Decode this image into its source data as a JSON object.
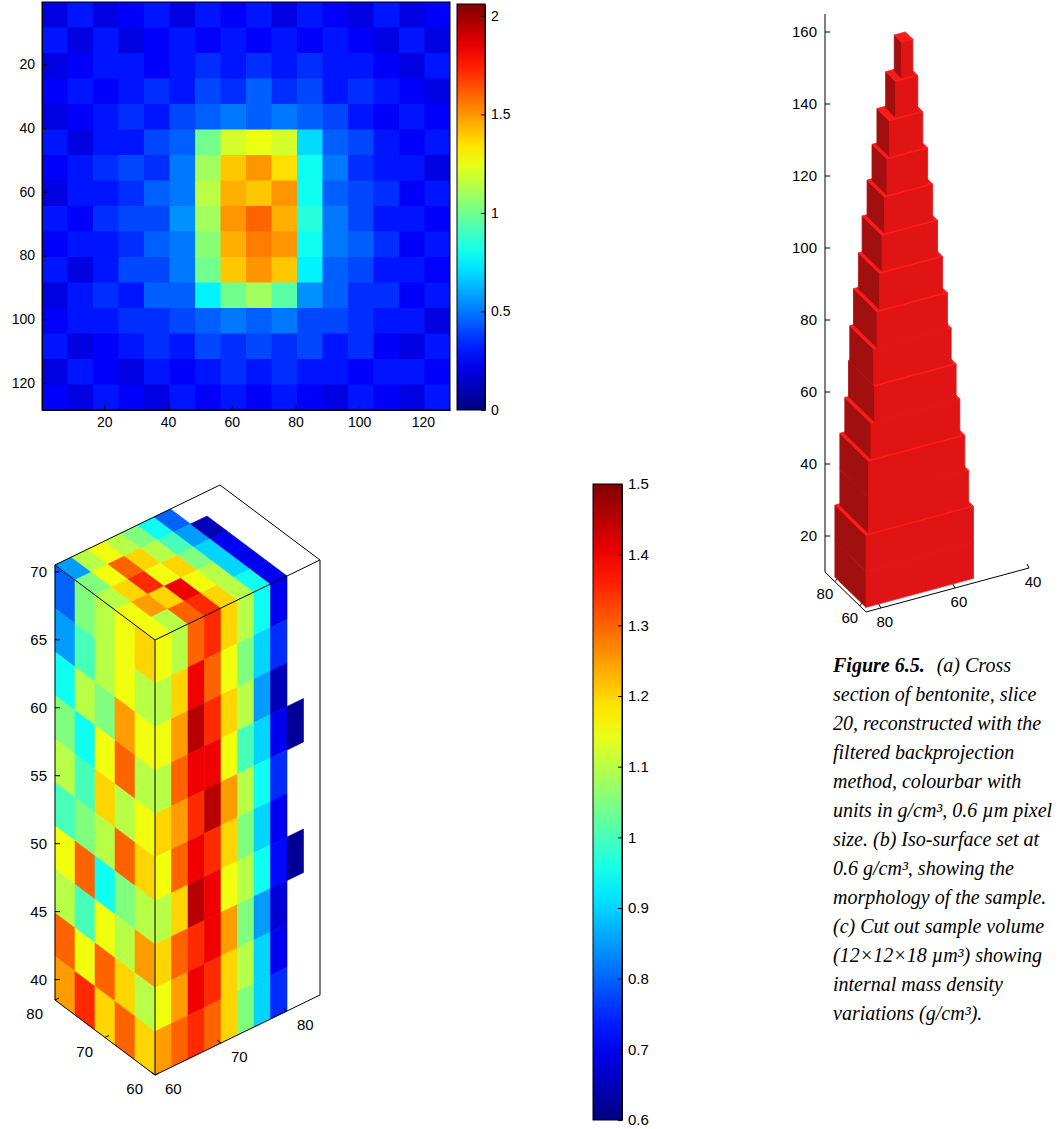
{
  "chart_data": [
    {
      "type": "heatmap",
      "x_edges": [
        0.5,
        8.5,
        16.5,
        24.5,
        32.5,
        40.5,
        48.5,
        56.5,
        64.5,
        72.5,
        80.5,
        88.5,
        96.5,
        104.5,
        112.5,
        120.5,
        128.5
      ],
      "y_edges": [
        0.5,
        8.5,
        16.5,
        24.5,
        32.5,
        40.5,
        48.5,
        56.5,
        64.5,
        72.5,
        80.5,
        88.5,
        96.5,
        104.5,
        112.5,
        120.5,
        128.5
      ],
      "cells": [
        [
          0.2,
          0.3,
          0.2,
          0.25,
          0.3,
          0.2,
          0.3,
          0.25,
          0.3,
          0.2,
          0.3,
          0.25,
          0.2,
          0.3,
          0.2,
          0.25
        ],
        [
          0.3,
          0.2,
          0.3,
          0.2,
          0.25,
          0.3,
          0.25,
          0.3,
          0.25,
          0.3,
          0.25,
          0.3,
          0.25,
          0.2,
          0.3,
          0.2
        ],
        [
          0.2,
          0.25,
          0.3,
          0.3,
          0.25,
          0.3,
          0.35,
          0.3,
          0.35,
          0.3,
          0.35,
          0.3,
          0.3,
          0.25,
          0.2,
          0.3
        ],
        [
          0.25,
          0.3,
          0.25,
          0.3,
          0.35,
          0.3,
          0.4,
          0.35,
          0.45,
          0.35,
          0.4,
          0.3,
          0.35,
          0.3,
          0.25,
          0.2
        ],
        [
          0.2,
          0.25,
          0.3,
          0.35,
          0.3,
          0.4,
          0.45,
          0.5,
          0.45,
          0.5,
          0.45,
          0.4,
          0.3,
          0.25,
          0.3,
          0.25
        ],
        [
          0.3,
          0.2,
          0.3,
          0.3,
          0.4,
          0.45,
          1.0,
          1.2,
          1.25,
          1.2,
          0.7,
          0.45,
          0.4,
          0.3,
          0.25,
          0.3
        ],
        [
          0.25,
          0.3,
          0.35,
          0.4,
          0.35,
          0.5,
          1.1,
          1.4,
          1.5,
          1.35,
          0.8,
          0.5,
          0.35,
          0.3,
          0.3,
          0.2
        ],
        [
          0.2,
          0.3,
          0.3,
          0.35,
          0.45,
          0.5,
          1.15,
          1.45,
          1.4,
          1.5,
          0.8,
          0.45,
          0.4,
          0.35,
          0.25,
          0.3
        ],
        [
          0.3,
          0.25,
          0.35,
          0.4,
          0.4,
          0.55,
          1.1,
          1.5,
          1.6,
          1.45,
          0.85,
          0.5,
          0.4,
          0.3,
          0.3,
          0.25
        ],
        [
          0.25,
          0.3,
          0.3,
          0.35,
          0.45,
          0.5,
          1.05,
          1.45,
          1.55,
          1.5,
          0.8,
          0.5,
          0.45,
          0.35,
          0.25,
          0.3
        ],
        [
          0.3,
          0.2,
          0.3,
          0.4,
          0.4,
          0.5,
          1.0,
          1.4,
          1.5,
          1.4,
          0.75,
          0.45,
          0.4,
          0.3,
          0.3,
          0.25
        ],
        [
          0.2,
          0.3,
          0.35,
          0.3,
          0.45,
          0.45,
          0.75,
          1.0,
          1.1,
          0.95,
          0.55,
          0.45,
          0.35,
          0.35,
          0.25,
          0.3
        ],
        [
          0.25,
          0.3,
          0.3,
          0.35,
          0.35,
          0.4,
          0.45,
          0.5,
          0.45,
          0.5,
          0.4,
          0.4,
          0.35,
          0.3,
          0.3,
          0.2
        ],
        [
          0.3,
          0.2,
          0.25,
          0.3,
          0.35,
          0.3,
          0.4,
          0.35,
          0.4,
          0.35,
          0.4,
          0.3,
          0.35,
          0.25,
          0.2,
          0.3
        ],
        [
          0.2,
          0.3,
          0.25,
          0.2,
          0.3,
          0.25,
          0.3,
          0.35,
          0.3,
          0.35,
          0.3,
          0.3,
          0.25,
          0.3,
          0.3,
          0.25
        ],
        [
          0.25,
          0.2,
          0.3,
          0.25,
          0.2,
          0.3,
          0.25,
          0.3,
          0.25,
          0.3,
          0.25,
          0.2,
          0.3,
          0.25,
          0.2,
          0.3
        ]
      ],
      "xlim": [
        0.5,
        128.5
      ],
      "ylim": [
        0.5,
        128.5
      ],
      "xticks": [
        20,
        40,
        60,
        80,
        100,
        120
      ],
      "yticks": [
        20,
        40,
        60,
        80,
        100,
        120
      ],
      "colorbar": {
        "range": [
          0,
          2.06
        ],
        "ticks": [
          0,
          0.5,
          1,
          1.5,
          2
        ]
      }
    },
    {
      "type": "isosurface",
      "color": "#e01414",
      "xlim": [
        55,
        88
      ],
      "ylim": [
        40,
        84
      ],
      "zlim": [
        10,
        165
      ],
      "xticks": [
        60,
        80
      ],
      "yticks": [
        40,
        60,
        80
      ],
      "zticks": [
        20,
        40,
        60,
        80,
        100,
        120,
        140,
        160
      ],
      "slices": {
        "z_edges": [
          10,
          20,
          30,
          40,
          50,
          60,
          70,
          80,
          90,
          100,
          110,
          120,
          130,
          140,
          150,
          160
        ],
        "xmin": [
          58,
          58,
          59,
          59,
          60,
          60,
          61,
          61,
          62,
          63,
          64,
          65,
          66,
          67,
          68
        ],
        "xmax": [
          83,
          83,
          82,
          82,
          81,
          81,
          80,
          80,
          79,
          79,
          78,
          77,
          76,
          75,
          74
        ],
        "ymin": [
          54,
          54,
          55,
          56,
          57,
          58,
          59,
          60,
          61,
          62,
          63,
          64,
          65,
          66,
          67
        ],
        "ymax": [
          83,
          83,
          82,
          82,
          81,
          80,
          80,
          79,
          78,
          77,
          76,
          75,
          74,
          72,
          70
        ]
      }
    },
    {
      "type": "volume",
      "xlim": [
        60,
        80
      ],
      "ylim": [
        60,
        85
      ],
      "zlim": [
        38.5,
        70.5
      ],
      "xticks": [
        60,
        70,
        80
      ],
      "yticks": [
        60,
        70,
        80
      ],
      "zticks": [
        40,
        45,
        50,
        55,
        60,
        65,
        70
      ],
      "faces": {
        "left": {
          "x_edges": [
            80,
            76,
            72,
            68,
            64,
            60
          ],
          "z_edges": [
            70.5,
            67.3,
            64.1,
            60.9,
            57.7,
            54.5,
            51.3,
            48.1,
            44.9,
            41.7,
            38.5
          ],
          "values": [
            [
              0.8,
              1.05,
              1.1,
              1.15,
              1.2
            ],
            [
              0.85,
              1.0,
              1.1,
              1.15,
              1.1
            ],
            [
              0.95,
              1.1,
              1.05,
              1.25,
              1.15
            ],
            [
              1.05,
              0.95,
              1.15,
              1.3,
              1.1
            ],
            [
              1.1,
              1.0,
              1.2,
              1.1,
              1.15
            ],
            [
              1.0,
              1.05,
              1.1,
              1.3,
              1.2
            ],
            [
              1.15,
              1.3,
              0.95,
              1.05,
              1.1
            ],
            [
              1.1,
              1.0,
              1.15,
              1.1,
              1.25
            ],
            [
              1.3,
              1.15,
              1.3,
              1.2,
              1.1
            ],
            [
              1.25,
              1.35,
              1.2,
              1.3,
              1.2
            ]
          ]
        },
        "right": {
          "y_edges": [
            60,
            62.5,
            65,
            67.5,
            70,
            72.5,
            75,
            77.5,
            80,
            82.5,
            85
          ],
          "z_edges": [
            70.5,
            67.3,
            64.1,
            60.9,
            57.7,
            54.5,
            51.3,
            48.1,
            44.9,
            41.7,
            38.5
          ],
          "values": [
            [
              1.15,
              1.1,
              1.3,
              1.35,
              1.2,
              1.1,
              0.95,
              0.7,
              null,
              null
            ],
            [
              1.1,
              1.2,
              1.4,
              1.3,
              1.15,
              1.05,
              0.9,
              0.75,
              null,
              null
            ],
            [
              1.15,
              1.25,
              1.45,
              1.35,
              1.2,
              1.1,
              0.85,
              0.65,
              null,
              null
            ],
            [
              1.1,
              1.3,
              1.4,
              1.4,
              1.15,
              1.0,
              0.9,
              0.7,
              0.62,
              null
            ],
            [
              1.2,
              1.25,
              1.35,
              1.45,
              1.25,
              1.1,
              0.95,
              0.75,
              null,
              null
            ],
            [
              1.15,
              1.3,
              1.4,
              1.35,
              1.2,
              1.05,
              0.9,
              0.7,
              null,
              null
            ],
            [
              1.1,
              1.2,
              1.45,
              1.4,
              1.15,
              1.1,
              0.95,
              0.72,
              0.62,
              null
            ],
            [
              1.2,
              1.3,
              1.35,
              1.4,
              1.25,
              1.05,
              0.85,
              0.68,
              null,
              null
            ],
            [
              1.15,
              1.25,
              1.4,
              1.35,
              1.2,
              1.1,
              0.9,
              0.7,
              null,
              null
            ],
            [
              1.25,
              1.3,
              1.35,
              1.3,
              1.2,
              1.05,
              0.9,
              0.75,
              null,
              null
            ]
          ]
        },
        "top": {
          "x_edges": [
            80,
            76,
            72,
            68,
            64,
            60
          ],
          "y_edges": [
            60,
            62.5,
            65,
            67.5,
            70,
            72.5,
            75,
            77.5,
            80,
            82.5,
            85
          ],
          "values": [
            [
              0.85,
              1.1,
              1.15,
              1.1,
              1.05,
              0.95,
              0.8,
              null,
              null,
              null
            ],
            [
              1.05,
              1.15,
              1.3,
              1.2,
              1.1,
              1.0,
              0.85,
              0.65,
              null,
              null
            ],
            [
              1.1,
              1.2,
              1.35,
              1.15,
              1.2,
              1.05,
              0.9,
              0.7,
              null,
              null
            ],
            [
              1.15,
              1.25,
              1.2,
              1.4,
              1.15,
              1.1,
              0.9,
              0.7,
              null,
              null
            ],
            [
              1.15,
              1.1,
              1.3,
              1.35,
              1.2,
              1.1,
              0.95,
              0.7,
              null,
              null
            ]
          ]
        }
      },
      "colorbar": {
        "range": [
          0.6,
          1.5
        ],
        "ticks": [
          0.6,
          0.7,
          0.8,
          0.9,
          1,
          1.1,
          1.2,
          1.3,
          1.4,
          1.5
        ]
      }
    }
  ],
  "caption": {
    "label": "Figure 6.5.",
    "lines": [
      "(a) Cross",
      "section of bentonite, slice",
      "20, reconstructed with the",
      "filtered backprojection",
      "method, colourbar with",
      "units in g/cm³, 0.6 µm pixel",
      "size. (b) Iso-surface set at",
      "0.6 g/cm³, showing the",
      "morphology of the sample.",
      "(c) Cut out sample volume",
      "(12×12×18 µm³) showing",
      "internal mass density",
      "variations (g/cm³)."
    ]
  }
}
